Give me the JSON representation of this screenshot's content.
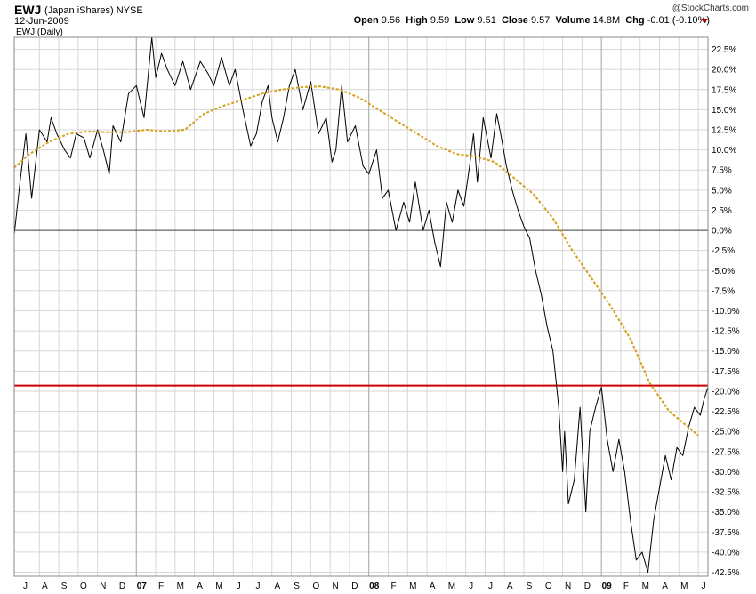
{
  "header": {
    "ticker": "EWJ",
    "name": "(Japan iShares)",
    "exchange": "NYSE",
    "date": "12-Jun-2009",
    "copyright": "@StockCharts.com",
    "open_label": "Open",
    "open": "9.56",
    "high_label": "High",
    "high": "9.59",
    "low_label": "Low",
    "low": "9.51",
    "close_label": "Close",
    "close": "9.57",
    "volume_label": "Volume",
    "volume": "14.8M",
    "chg_label": "Chg",
    "chg": "-0.01 (-0.10%)",
    "chg_color": "#c00000"
  },
  "chart_data": {
    "type": "line",
    "legend": "EWJ (Daily)",
    "ylim": [
      -43.0,
      24.0
    ],
    "y_ticks": [
      22.5,
      20.0,
      17.5,
      15.0,
      12.5,
      10.0,
      7.5,
      5.0,
      2.5,
      0.0,
      -2.5,
      -5.0,
      -7.5,
      -10.0,
      -12.5,
      -15.0,
      -17.5,
      -20.0,
      -22.5,
      -25.0,
      -27.5,
      -30.0,
      -32.5,
      -35.0,
      -37.5,
      -40.0,
      -42.5
    ],
    "y_tick_labels": [
      "22.5%",
      "20.0%",
      "17.5%",
      "15.0%",
      "12.5%",
      "10.0%",
      "7.5%",
      "5.0%",
      "2.5%",
      "0.0%",
      "-2.5%",
      "-5.0%",
      "-7.5%",
      "-10.0%",
      "-12.5%",
      "-15.0%",
      "-17.5%",
      "-20.0%",
      "-22.5%",
      "-25.0%",
      "-27.5%",
      "-30.0%",
      "-32.5%",
      "-35.0%",
      "-37.5%",
      "-40.0%",
      "-42.5%"
    ],
    "x_months": [
      "J",
      "A",
      "S",
      "O",
      "N",
      "D",
      "07",
      "F",
      "M",
      "A",
      "M",
      "J",
      "J",
      "A",
      "S",
      "O",
      "N",
      "D",
      "08",
      "F",
      "M",
      "A",
      "M",
      "J",
      "J",
      "A",
      "S",
      "O",
      "N",
      "D",
      "09",
      "F",
      "M",
      "A",
      "M",
      "J"
    ],
    "x_bold": [
      "07",
      "08",
      "09"
    ],
    "year_lines": [
      6,
      18,
      30
    ],
    "month_span": [
      -0.3,
      35.5
    ],
    "series": [
      {
        "color": "#000000",
        "x": [
          -0.3,
          0.0,
          0.3,
          0.6,
          1.0,
          1.4,
          1.6,
          1.9,
          2.3,
          2.6,
          2.9,
          3.3,
          3.6,
          4.0,
          4.3,
          4.6,
          4.8,
          5.2,
          5.6,
          6.0,
          6.4,
          6.8,
          7.0,
          7.3,
          7.6,
          8.0,
          8.4,
          8.8,
          9.3,
          9.7,
          10.0,
          10.4,
          10.8,
          11.1,
          11.5,
          11.9,
          12.2,
          12.5,
          12.8,
          13.0,
          13.3,
          13.6,
          13.9,
          14.2,
          14.6,
          15.0,
          15.4,
          15.8,
          16.1,
          16.3,
          16.6,
          16.9,
          17.3,
          17.7,
          18.0,
          18.4,
          18.7,
          19.0,
          19.4,
          19.8,
          20.1,
          20.4,
          20.8,
          21.1,
          21.4,
          21.7,
          22.0,
          22.3,
          22.6,
          22.9,
          23.2,
          23.4,
          23.6,
          23.9,
          24.3,
          24.6,
          24.8,
          25.1,
          25.4,
          25.7,
          26.0,
          26.3,
          26.6,
          26.9,
          27.2,
          27.5,
          27.8,
          28.0,
          28.1,
          28.3,
          28.6,
          28.9,
          29.2,
          29.4,
          29.7,
          30.0,
          30.3,
          30.6,
          30.9,
          31.2,
          31.5,
          31.8,
          32.1,
          32.4,
          32.7,
          33.0,
          33.3,
          33.6,
          33.9,
          34.2,
          34.5,
          34.8,
          35.1,
          35.3,
          35.5
        ],
        "values": [
          -0.5,
          6.0,
          12.0,
          4.0,
          12.5,
          11.0,
          14.0,
          12.0,
          10.0,
          9.0,
          12.0,
          11.5,
          9.0,
          12.5,
          10.0,
          7.0,
          13.0,
          11.0,
          17.0,
          18.0,
          14.0,
          24.0,
          19.0,
          22.0,
          20.0,
          18.0,
          21.0,
          17.5,
          21.0,
          19.5,
          18.0,
          21.5,
          18.0,
          20.0,
          15.0,
          10.5,
          12.0,
          16.0,
          18.0,
          14.0,
          11.0,
          14.0,
          18.0,
          20.0,
          15.0,
          18.5,
          12.0,
          14.0,
          8.5,
          10.0,
          18.0,
          11.0,
          13.0,
          8.0,
          7.0,
          10.0,
          4.0,
          5.0,
          0.0,
          3.5,
          1.0,
          6.0,
          0.0,
          2.5,
          -1.5,
          -4.5,
          3.5,
          1.0,
          5.0,
          3.0,
          8.0,
          12.0,
          6.0,
          14.0,
          9.0,
          14.5,
          12.0,
          8.0,
          5.0,
          2.5,
          0.5,
          -1.0,
          -5.0,
          -8.0,
          -12.0,
          -15.0,
          -22.0,
          -30.0,
          -25.0,
          -34.0,
          -31.0,
          -22.0,
          -35.0,
          -25.0,
          -22.0,
          -19.5,
          -26.0,
          -30.0,
          -26.0,
          -30.0,
          -36.0,
          -41.0,
          -40.0,
          -42.5,
          -36.0,
          -32.0,
          -28.0,
          -31.0,
          -27.0,
          -28.0,
          -24.5,
          -22.0,
          -23.0,
          -21.0,
          -19.5
        ]
      },
      {
        "color": "#d4a017",
        "x": [
          -0.3,
          0.5,
          1.5,
          2.5,
          3.5,
          4.5,
          5.5,
          6.5,
          7.5,
          8.5,
          9.5,
          10.5,
          11.5,
          12.5,
          13.5,
          14.5,
          15.5,
          16.5,
          17.5,
          18.5,
          19.5,
          20.5,
          21.5,
          22.5,
          23.5,
          24.5,
          25.5,
          26.5,
          27.5,
          28.5,
          29.5,
          30.5,
          31.5,
          32.5,
          33.5,
          34.5,
          35.0
        ],
        "values": [
          7.8,
          9.5,
          11.0,
          12.0,
          12.3,
          12.2,
          12.2,
          12.5,
          12.3,
          12.5,
          14.5,
          15.5,
          16.2,
          17.0,
          17.5,
          17.8,
          17.9,
          17.5,
          16.5,
          15.0,
          13.5,
          12.0,
          10.5,
          9.5,
          9.2,
          8.5,
          6.5,
          4.5,
          1.5,
          -2.5,
          -6.0,
          -9.5,
          -13.5,
          -19.0,
          -22.5,
          -24.5,
          -25.5
        ]
      }
    ],
    "hlines": [
      {
        "y": 0.0,
        "color": "#444444"
      },
      {
        "y": -19.3,
        "color": "#cc0000"
      }
    ]
  }
}
